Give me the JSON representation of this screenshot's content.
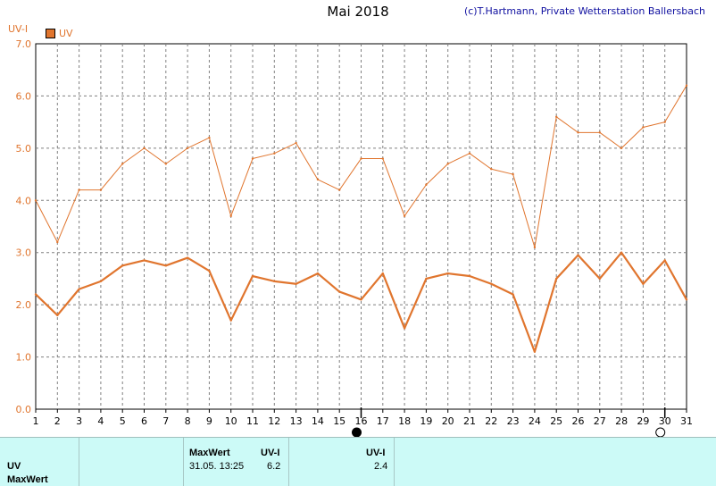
{
  "header": {
    "title": "Mai 2018",
    "credit": "(c)T.Hartmann, Private Wetterstation Ballersbach",
    "y_unit": "UV-I",
    "legend_label": "UV"
  },
  "colors": {
    "series": "#e0752e",
    "grid": "#808080",
    "footer_bg": "#ccfaf7"
  },
  "chart_data": {
    "type": "line",
    "title": "Mai 2018",
    "ylabel": "UV-I",
    "ylim": [
      0,
      7
    ],
    "yticks": [
      "0.0",
      "1.0",
      "2.0",
      "3.0",
      "4.0",
      "5.0",
      "6.0",
      "7.0"
    ],
    "x": [
      "1",
      "2",
      "3",
      "4",
      "5",
      "6",
      "7",
      "8",
      "9",
      "10",
      "11",
      "12",
      "13",
      "14",
      "15",
      "16",
      "17",
      "18",
      "19",
      "20",
      "21",
      "22",
      "23",
      "24",
      "25",
      "26",
      "27",
      "28",
      "29",
      "30",
      "31"
    ],
    "grid": true,
    "legend": "top-left",
    "series": [
      {
        "name": "UV",
        "values": [
          2.2,
          1.8,
          2.3,
          2.45,
          2.75,
          2.85,
          2.75,
          2.9,
          2.65,
          1.7,
          2.55,
          2.45,
          2.4,
          2.6,
          2.25,
          2.1,
          2.6,
          1.55,
          2.5,
          2.6,
          2.55,
          2.4,
          2.2,
          1.1,
          2.5,
          2.95,
          2.5,
          3.0,
          2.4,
          2.85,
          2.1
        ]
      },
      {
        "values": [
          4.0,
          3.2,
          4.2,
          4.2,
          4.7,
          5.0,
          4.7,
          5.0,
          5.2,
          3.7,
          4.8,
          4.9,
          5.1,
          4.4,
          4.2,
          4.8,
          4.8,
          3.7,
          4.3,
          4.7,
          4.9,
          4.6,
          4.5,
          3.1,
          5.6,
          5.3,
          5.3,
          5.0,
          5.4,
          5.5,
          6.2
        ]
      }
    ],
    "moon_markers": [
      {
        "day": "16",
        "phase": "new"
      },
      {
        "day": "30",
        "phase": "full"
      }
    ]
  },
  "footer": {
    "row1_label": "UV",
    "row2_label": "MaxWert",
    "max_header": "MaxWert",
    "unit_header_1": "UV-I",
    "unit_header_2": "UV-I",
    "max_time": "31.05.  13:25",
    "max_value": "6.2",
    "avg_value": "2.4"
  }
}
